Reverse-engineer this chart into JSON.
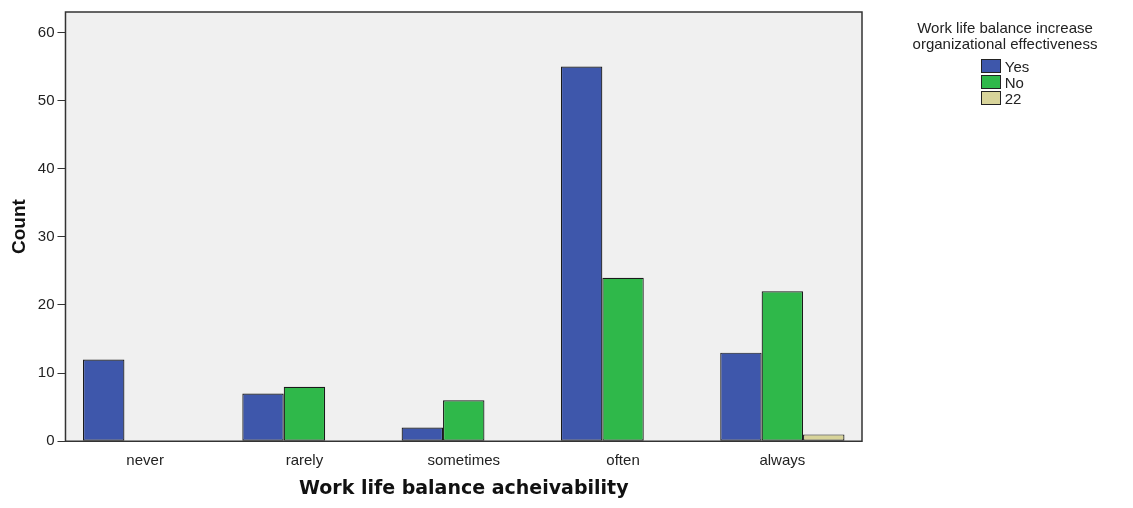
{
  "chart_data": {
    "type": "bar",
    "xlabel": "Work life balance acheivability",
    "ylabel": "Count",
    "legend_title": "Work life balance increase organizational effectiveness",
    "categories": [
      "never",
      "rarely",
      "sometimes",
      "often",
      "always"
    ],
    "series": [
      {
        "name": "Yes",
        "color": "#3e57ab",
        "values": [
          12,
          7,
          2,
          55,
          13
        ]
      },
      {
        "name": "No",
        "color": "#2fb84a",
        "values": [
          0,
          8,
          6,
          24,
          22
        ]
      },
      {
        "name": "22",
        "color": "#d8d49a",
        "values": [
          0,
          0,
          0,
          0,
          1
        ]
      }
    ],
    "ylim": [
      0,
      63
    ],
    "yticks": [
      0,
      10,
      20,
      30,
      40,
      50,
      60
    ],
    "grid": false,
    "legend": "top right"
  }
}
